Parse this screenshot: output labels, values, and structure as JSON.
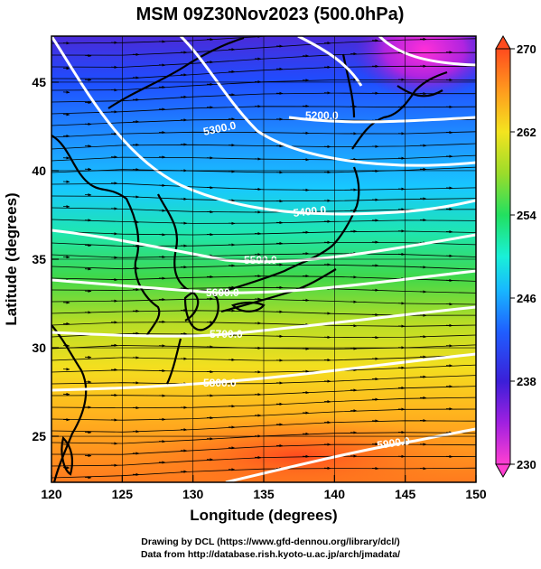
{
  "title": "MSM 09Z30Nov2023 (500.0hPa)",
  "x_axis": {
    "label": "Longitude (degrees)",
    "ticks": [
      "120",
      "125",
      "130",
      "135",
      "140",
      "145",
      "150"
    ],
    "range": [
      120,
      150
    ]
  },
  "y_axis": {
    "label": "Latitude  (degrees)",
    "ticks": [
      "25",
      "30",
      "35",
      "40",
      "45"
    ],
    "range": [
      22.4,
      47.6
    ]
  },
  "colorbar": {
    "ticks": [
      "230",
      "238",
      "246",
      "254",
      "262",
      "270"
    ],
    "range": [
      230,
      270
    ],
    "colors": [
      "#ff3fd1",
      "#a020e0",
      "#3b1fd8",
      "#1f5fff",
      "#18b8ff",
      "#19f0d8",
      "#22e060",
      "#9bdc2a",
      "#f4e41f",
      "#ff9a1e",
      "#ff4b1e"
    ]
  },
  "contours": {
    "labels": [
      "5200.0",
      "5300.0",
      "5400.0",
      "5500.0",
      "5600.0",
      "5700.0",
      "5800.0",
      "5900.0"
    ]
  },
  "credits": {
    "line1": "Drawing by DCL (https://www.gfd-dennou.org/library/dcl/)",
    "line2": "Data from http://database.rish.kyoto-u.ac.jp/arch/jmadata/"
  }
}
